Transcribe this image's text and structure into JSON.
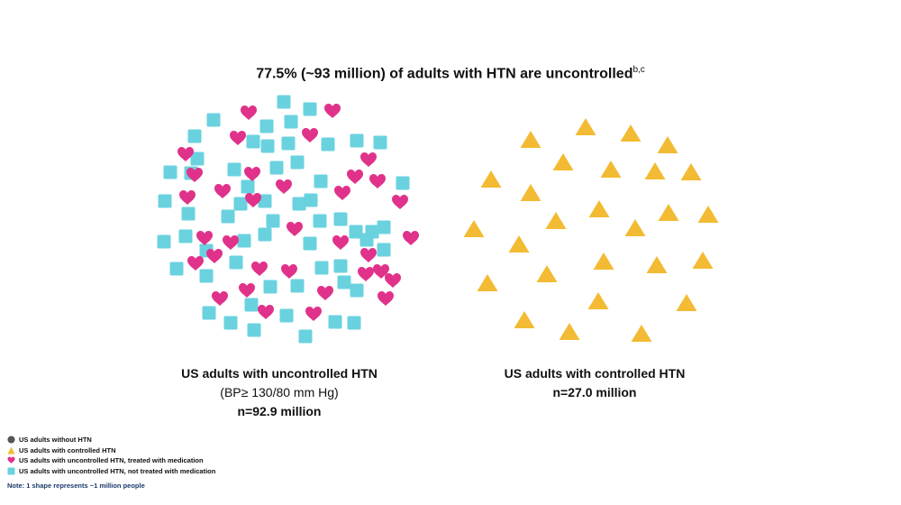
{
  "title": {
    "text": "77.5% (~93 million) of adults with HTN are uncontrolled",
    "superscript": "b,c"
  },
  "groups": {
    "uncontrolled": {
      "title": "US adults with uncontrolled HTN",
      "criterion": "(BP≥ 130/80 mm Hg)",
      "n": "n=92.9 million"
    },
    "controlled": {
      "title": "US adults with controlled HTN",
      "n": "n=27.0 million"
    }
  },
  "legend": [
    {
      "label": "US adults without HTN",
      "symbol": "circle",
      "color": "#555555"
    },
    {
      "label": "US adults with controlled HTN",
      "symbol": "triangle",
      "color": "#f3bb33"
    },
    {
      "label": "US adults with uncontrolled HTN, treated with medication",
      "symbol": "heart",
      "color": "#e0328a"
    },
    {
      "label": "US adults with uncontrolled HTN, not treated with medication",
      "symbol": "square",
      "color": "#6ad2df"
    }
  ],
  "note": "Note: 1 shape represents ~1 million people",
  "colors": {
    "heart": "#e0328a",
    "square": "#6ad2df",
    "triangle": "#f3bb33",
    "circle": "#555555"
  }
}
